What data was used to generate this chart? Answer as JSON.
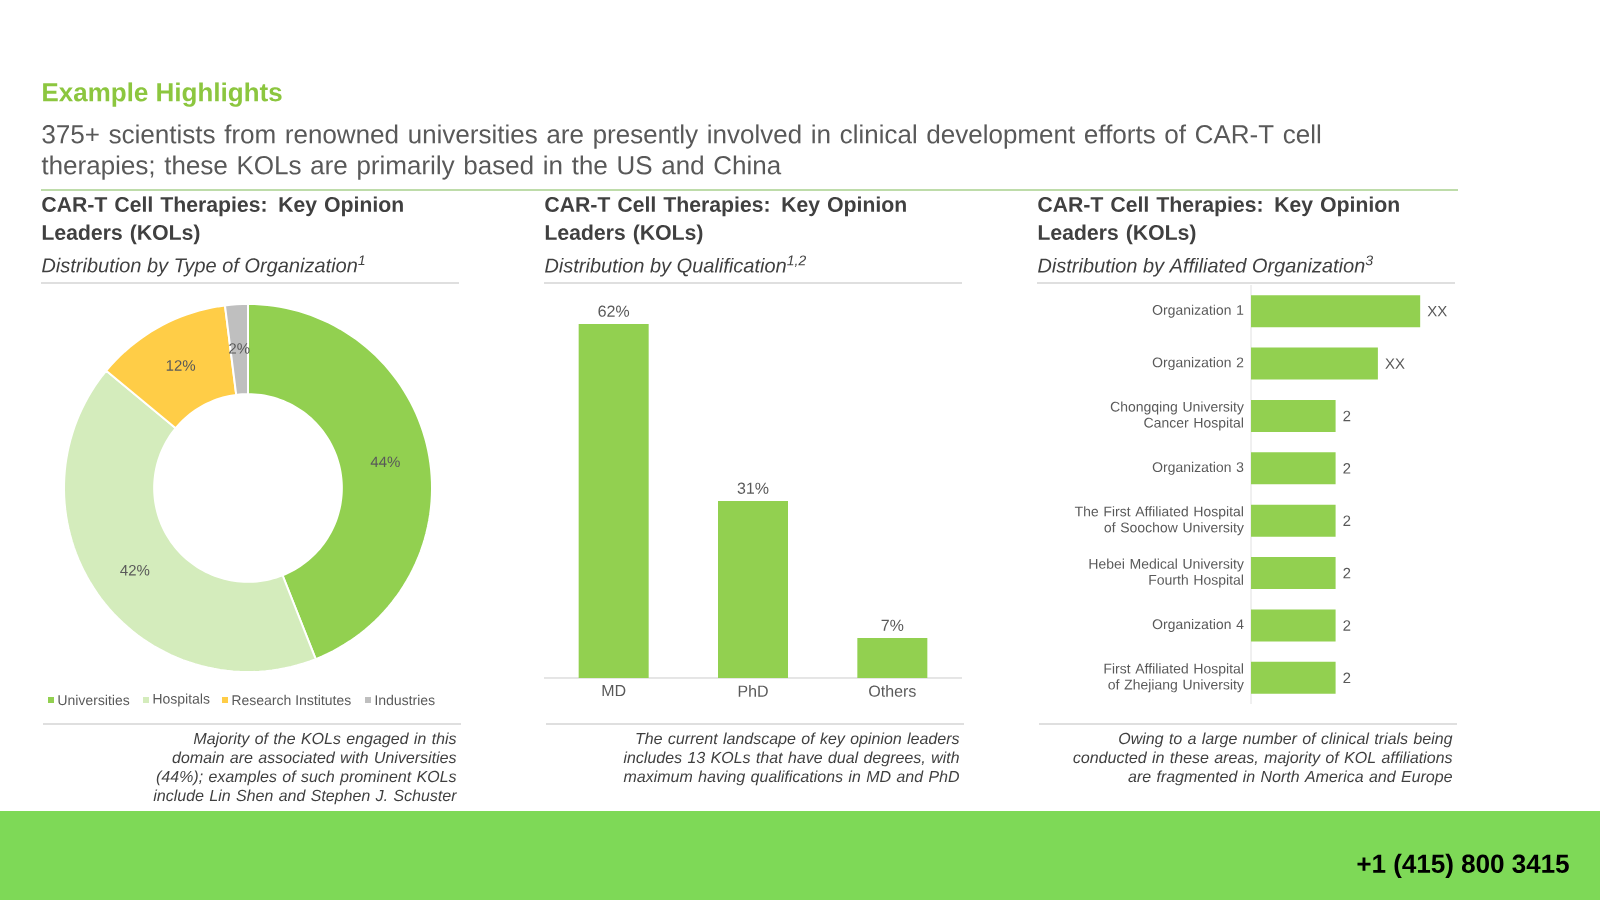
{
  "chart_data": [
    {
      "type": "other",
      "title": "Example Highlights",
      "subtitle": "375+ scientists from renowned universities are presently involved in clinical development efforts of CAR-T cell therapies; these KOLs are primarily based in the US and China",
      "annotations": [
        "+1 (415) 800 3415"
      ]
    },
    {
      "type": "donut",
      "title": "CAR-T Cell Therapies: Key Opinion Leaders (KOLs)",
      "subtitle": "Distribution by Type of Organization$^{1}$",
      "categories": [
        "Universities",
        "Hospitals",
        "Research Institutes",
        "Industries"
      ],
      "values": [
        44,
        42,
        12,
        2
      ],
      "colors": [
        "#92d050",
        "#d4ecbc",
        "#ffcd47",
        "#bfbfbf"
      ],
      "value_labels": [
        "44%",
        "42%",
        "12%",
        "2%"
      ],
      "legend": "bottom",
      "annotations": [
        "Majority of the KOLs engaged in this domain are associated with Universities (44%); examples of such prominent KOLs include Lin Shen and Stephen J. Schuster"
      ]
    },
    {
      "type": "bar",
      "title": "CAR-T Cell Therapies: Key Opinion Leaders (KOLs)",
      "subtitle": "Distribution by Qualification$^{1,2}$",
      "categories": [
        "MD",
        "PhD",
        "Others"
      ],
      "values": [
        62,
        31,
        7
      ],
      "color": "#92d050",
      "value_labels": [
        "62%",
        "31%",
        "7%"
      ],
      "annotations": [
        "The current landscape of key opinion leaders includes 13 KOLs that have dual degrees, with maximum having qualifications in MD and PhD"
      ]
    },
    {
      "type": "bar",
      "orientation": "horizontal",
      "title": "CAR-T Cell Therapies: Key Opinion Leaders (KOLs)",
      "subtitle": "Distribution by Affiliated Organization$^{3}$",
      "categories": [
        "Organization 1",
        "Organization 2",
        "Chongqing University Cancer Hospital",
        "Organization 3",
        "The First Affiliated Hospital of Soochow University",
        "Hebei Medical University Fourth Hospital",
        "Organization 4",
        "First Affiliated Hospital of Zhejiang University"
      ],
      "values": [
        4,
        3,
        2,
        2,
        2,
        2,
        2,
        2
      ],
      "color": "#92d050",
      "value_labels": [
        "XX",
        "XX",
        "2",
        "2",
        "2",
        "2",
        "2",
        "2"
      ],
      "annotations": [
        "Owing to a large number of clinical trials being conducted in these areas, majority of KOL affiliations are fragmented in North America and Europe"
      ]
    }
  ]
}
